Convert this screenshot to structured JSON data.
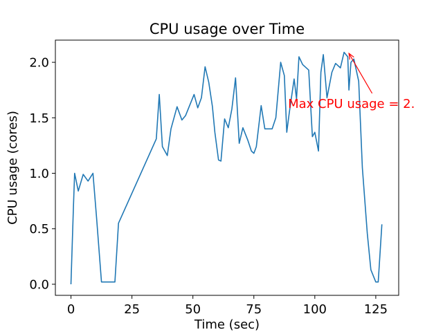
{
  "chart_data": {
    "type": "line",
    "title": "CPU usage over Time",
    "xlabel": "Time (sec)",
    "ylabel": "CPU usage (cores)",
    "xlim": [
      -6.4,
      134.4
    ],
    "ylim": [
      -0.1,
      2.2
    ],
    "x_ticks": [
      {
        "value": 0,
        "label": "0"
      },
      {
        "value": 25,
        "label": "25"
      },
      {
        "value": 50,
        "label": "50"
      },
      {
        "value": 75,
        "label": "75"
      },
      {
        "value": 100,
        "label": "100"
      },
      {
        "value": 125,
        "label": "125"
      }
    ],
    "y_ticks": [
      {
        "value": 0.0,
        "label": "0.0"
      },
      {
        "value": 0.5,
        "label": "0.5"
      },
      {
        "value": 1.0,
        "label": "1.0"
      },
      {
        "value": 1.5,
        "label": "1.5"
      },
      {
        "value": 2.0,
        "label": "2.0"
      }
    ],
    "grid": false,
    "series": [
      {
        "color": "#1f77b4",
        "x": [
          0,
          1,
          1.5,
          3,
          5,
          7,
          9,
          10.5,
          12.5,
          15,
          18,
          19.5,
          35,
          36.2,
          37.5,
          39.5,
          41,
          43.5,
          45.5,
          47,
          49,
          50.5,
          52,
          53.5,
          55,
          56.5,
          58,
          59,
          60.5,
          61.5,
          63,
          64.5,
          66,
          67.5,
          69,
          70.5,
          72.5,
          74,
          75,
          76,
          78,
          79.5,
          81,
          82.5,
          84,
          86,
          87.5,
          88.5,
          89.5,
          91.5,
          92.5,
          93.5,
          95,
          97.5,
          99,
          100,
          101.5,
          102.5,
          103.5,
          105,
          107,
          108.5,
          110.5,
          112,
          113.5,
          114,
          114.8,
          116,
          118,
          119.5,
          121.5,
          123,
          125,
          126,
          127.5
        ],
        "y": [
          0.0,
          0.7,
          1.0,
          0.84,
          0.99,
          0.93,
          1.0,
          0.6,
          0.02,
          0.02,
          0.02,
          0.55,
          1.31,
          1.71,
          1.24,
          1.16,
          1.4,
          1.6,
          1.48,
          1.52,
          1.63,
          1.71,
          1.59,
          1.68,
          1.96,
          1.82,
          1.6,
          1.37,
          1.12,
          1.11,
          1.49,
          1.41,
          1.58,
          1.86,
          1.27,
          1.41,
          1.3,
          1.2,
          1.18,
          1.24,
          1.61,
          1.4,
          1.4,
          1.4,
          1.5,
          2.0,
          1.88,
          1.37,
          1.54,
          1.85,
          1.67,
          2.05,
          1.98,
          1.93,
          1.33,
          1.37,
          1.2,
          1.91,
          2.07,
          1.68,
          1.91,
          1.99,
          1.95,
          2.09,
          2.05,
          1.75,
          2.0,
          2.03,
          1.83,
          1.05,
          0.46,
          0.13,
          0.02,
          0.02,
          0.54
        ]
      }
    ],
    "annotation": {
      "text": "Max CPU usage = 2.",
      "color": "#ff0000",
      "point": [
        114,
        2.08
      ],
      "text_anchor": [
        89,
        1.63
      ],
      "arrow_tail": [
        123.5,
        1.72
      ]
    }
  }
}
